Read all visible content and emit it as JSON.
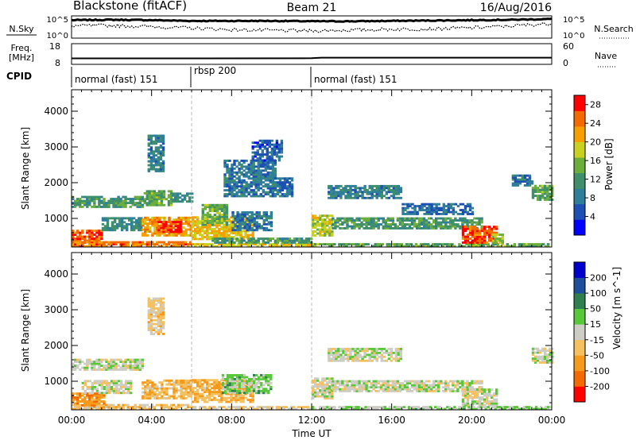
{
  "header": {
    "station": "Blackstone (fitACF)",
    "beam": "Beam 21",
    "date": "16/Aug/2016"
  },
  "chart_data": [
    {
      "type": "line",
      "panel": "sky-search-noise",
      "left_label": "N.Sky",
      "right_label": "N.Search",
      "y_ticks": [
        "10^5",
        "10^0"
      ],
      "y_ticks_right": [
        "10^5",
        "10^0"
      ],
      "series": [
        {
          "name": "N.Sky",
          "style": "solid",
          "x": [
            0,
            2,
            4,
            6,
            8,
            10,
            12,
            14,
            16,
            18,
            20,
            22,
            24
          ],
          "y": [
            4.3,
            4.4,
            4.3,
            4.1,
            4.1,
            4.1,
            4.0,
            4.0,
            4.1,
            4.2,
            4.3,
            4.4,
            4.6
          ]
        },
        {
          "name": "N.Search",
          "style": "dotted",
          "x": [
            0,
            2,
            4,
            6,
            8,
            10,
            12,
            14,
            16,
            18,
            20,
            22,
            24
          ],
          "y": [
            2.8,
            2.9,
            2.6,
            2.2,
            1.8,
            1.6,
            1.5,
            1.7,
            1.9,
            2.0,
            2.3,
            2.8,
            3.4
          ]
        }
      ]
    },
    {
      "type": "line",
      "panel": "frequency-nave",
      "left_label": "Freq.",
      "left_unit": "[MHz]",
      "right_label": "Nave",
      "y_ticks": [
        "18",
        "8"
      ],
      "y_ticks_right": [
        "60",
        "0"
      ],
      "ylim": [
        8,
        18
      ],
      "series": [
        {
          "name": "Freq.",
          "style": "solid",
          "x": [
            0,
            6,
            12,
            12.5,
            24
          ],
          "y": [
            10.5,
            10.5,
            10.6,
            10.9,
            10.9
          ]
        }
      ]
    },
    {
      "type": "table",
      "panel": "cpid",
      "label": "CPID",
      "segments": [
        {
          "start": 0,
          "end": 6,
          "label": "normal (fast) 151"
        },
        {
          "start": 6,
          "end": 12,
          "label": "rbsp 200"
        },
        {
          "start": 12,
          "end": 24,
          "label": "normal (fast) 151"
        }
      ]
    },
    {
      "type": "heatmap",
      "panel": "power",
      "ylabel": "Slant Range [km]",
      "yticks": [
        1000,
        2000,
        3000,
        4000
      ],
      "ylim": [
        200,
        4600
      ],
      "xlim": [
        0,
        24
      ],
      "colorbar_label": "Power [dB]",
      "colorbar_ticks": [
        28,
        24,
        20,
        16,
        12,
        8,
        4
      ],
      "colorbar_range": [
        0,
        30
      ],
      "colors": [
        "#0000ff",
        "#1d4fb5",
        "#2f7f9a",
        "#3f8f6a",
        "#6cae3c",
        "#c8d020",
        "#f5a000",
        "#f36b00",
        "#ff0000"
      ],
      "regions": [
        {
          "t0": 0.0,
          "t1": 3.6,
          "r0": 1300,
          "r1": 1600,
          "v": 12
        },
        {
          "t0": 3.6,
          "t1": 5.0,
          "r0": 1350,
          "r1": 1750,
          "v": 14
        },
        {
          "t0": 5.0,
          "t1": 6.0,
          "r0": 1450,
          "r1": 1700,
          "v": 10
        },
        {
          "t0": 0.0,
          "t1": 1.5,
          "r0": 300,
          "r1": 650,
          "v": 26
        },
        {
          "t0": 0.0,
          "t1": 6.0,
          "r0": 200,
          "r1": 320,
          "v": 24
        },
        {
          "t0": 1.5,
          "t1": 3.5,
          "r0": 650,
          "r1": 1000,
          "v": 10
        },
        {
          "t0": 3.5,
          "t1": 6.0,
          "r0": 500,
          "r1": 1050,
          "v": 22
        },
        {
          "t0": 4.3,
          "t1": 5.5,
          "r0": 600,
          "r1": 900,
          "v": 28
        },
        {
          "t0": 3.8,
          "t1": 4.6,
          "r0": 2300,
          "r1": 3300,
          "v": 9
        },
        {
          "t0": 6.0,
          "t1": 9.0,
          "r0": 400,
          "r1": 1050,
          "v": 20
        },
        {
          "t0": 6.5,
          "t1": 7.8,
          "r0": 800,
          "r1": 1400,
          "v": 14
        },
        {
          "t0": 8.0,
          "t1": 10.0,
          "r0": 650,
          "r1": 1200,
          "v": 8
        },
        {
          "t0": 6.0,
          "t1": 12.0,
          "r0": 200,
          "r1": 300,
          "v": 20
        },
        {
          "t0": 7.0,
          "t1": 12.0,
          "r0": 300,
          "r1": 450,
          "v": 12
        },
        {
          "t0": 7.6,
          "t1": 10.2,
          "r0": 1600,
          "r1": 2600,
          "v": 8
        },
        {
          "t0": 9.0,
          "t1": 10.5,
          "r0": 2600,
          "r1": 3200,
          "v": 6
        },
        {
          "t0": 10.0,
          "t1": 11.0,
          "r0": 1600,
          "r1": 2100,
          "v": 7
        },
        {
          "t0": 12.0,
          "t1": 13.0,
          "r0": 500,
          "r1": 1100,
          "v": 18
        },
        {
          "t0": 12.8,
          "t1": 16.5,
          "r0": 1550,
          "r1": 1900,
          "v": 9
        },
        {
          "t0": 13.0,
          "t1": 20.5,
          "r0": 700,
          "r1": 1000,
          "v": 12
        },
        {
          "t0": 12.0,
          "t1": 24.0,
          "r0": 200,
          "r1": 280,
          "v": 14
        },
        {
          "t0": 16.5,
          "t1": 20.0,
          "r0": 1100,
          "r1": 1400,
          "v": 7
        },
        {
          "t0": 19.5,
          "t1": 21.3,
          "r0": 300,
          "r1": 750,
          "v": 26
        },
        {
          "t0": 21.0,
          "t1": 21.6,
          "r0": 300,
          "r1": 550,
          "v": 16
        },
        {
          "t0": 23.0,
          "t1": 24.0,
          "r0": 1500,
          "r1": 1900,
          "v": 14
        },
        {
          "t0": 22.0,
          "t1": 23.0,
          "r0": 1900,
          "r1": 2200,
          "v": 8
        }
      ]
    },
    {
      "type": "heatmap",
      "panel": "velocity",
      "ylabel": "Slant Range [km]",
      "yticks": [
        1000,
        2000,
        3000,
        4000
      ],
      "ylim": [
        200,
        4600
      ],
      "xlim": [
        0,
        24
      ],
      "xlabel": "Time UT",
      "xticks": [
        "00:00",
        "04:00",
        "08:00",
        "12:00",
        "16:00",
        "20:00",
        "00:00"
      ],
      "colorbar_label": "Velocity [m s^-1]",
      "colorbar_ticks": [
        200,
        100,
        50,
        15,
        -15,
        -50,
        -100,
        -200
      ],
      "colorbar_range": [
        -250,
        250
      ],
      "colors": [
        "#ff0000",
        "#f36b00",
        "#f59a1a",
        "#f5c060",
        "#cdcdc5",
        "#58c83a",
        "#2f7f4f",
        "#1d4f9a",
        "#0000cc"
      ],
      "regions": [
        {
          "t0": 0.0,
          "t1": 6.0,
          "r0": 200,
          "r1": 320,
          "v": -60
        },
        {
          "t0": 0.0,
          "t1": 1.6,
          "r0": 300,
          "r1": 650,
          "v": -120
        },
        {
          "t0": 0.0,
          "t1": 3.6,
          "r0": 1300,
          "r1": 1600,
          "v": 0
        },
        {
          "t0": 0.5,
          "t1": 3.0,
          "r0": 650,
          "r1": 1000,
          "v": 0
        },
        {
          "t0": 3.5,
          "t1": 6.0,
          "r0": 500,
          "r1": 1050,
          "v": -70
        },
        {
          "t0": 6.0,
          "t1": 9.0,
          "r0": 400,
          "r1": 1050,
          "v": -80
        },
        {
          "t0": 7.5,
          "t1": 10.0,
          "r0": 650,
          "r1": 1200,
          "v": 45
        },
        {
          "t0": 6.0,
          "t1": 12.0,
          "r0": 200,
          "r1": 300,
          "v": -30
        },
        {
          "t0": 3.8,
          "t1": 4.6,
          "r0": 2300,
          "r1": 3300,
          "v": -40
        },
        {
          "t0": 12.0,
          "t1": 13.0,
          "r0": 500,
          "r1": 1100,
          "v": 0
        },
        {
          "t0": 13.0,
          "t1": 20.5,
          "r0": 700,
          "r1": 1000,
          "v": 0
        },
        {
          "t0": 12.8,
          "t1": 16.5,
          "r0": 1550,
          "r1": 1900,
          "v": 0
        },
        {
          "t0": 19.5,
          "t1": 21.3,
          "r0": 300,
          "r1": 750,
          "v": 0
        },
        {
          "t0": 12.0,
          "t1": 24.0,
          "r0": 200,
          "r1": 280,
          "v": 30
        },
        {
          "t0": 23.0,
          "t1": 24.0,
          "r0": 1500,
          "r1": 1900,
          "v": 0
        }
      ]
    }
  ]
}
